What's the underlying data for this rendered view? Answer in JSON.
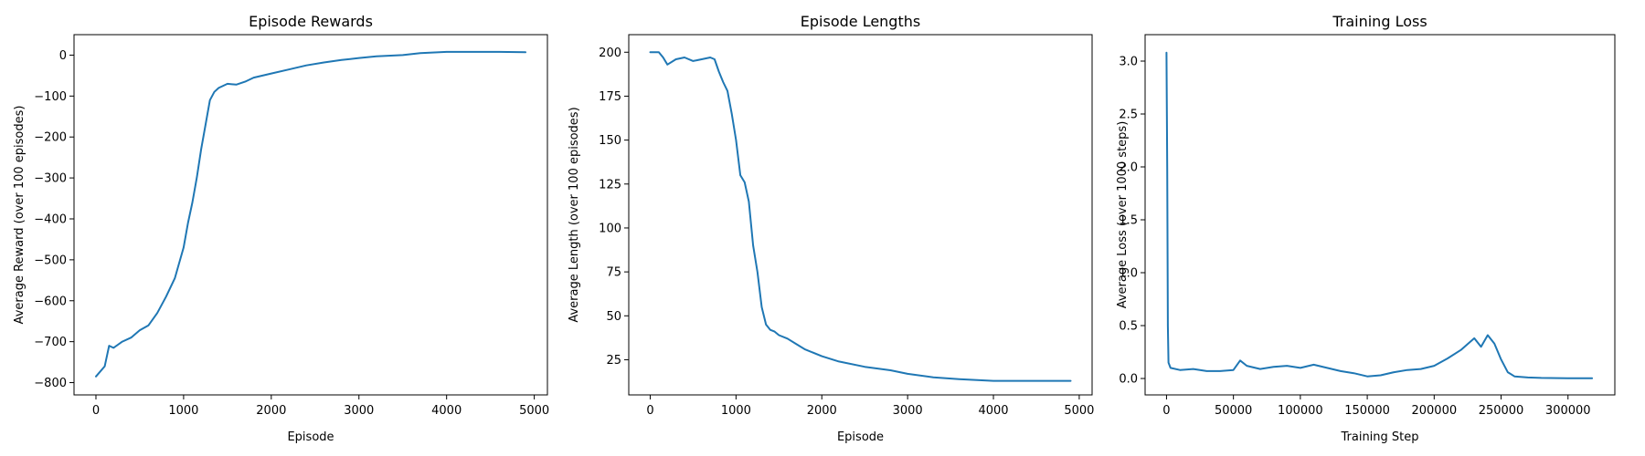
{
  "chart_data": [
    {
      "type": "line",
      "title": "Episode Rewards",
      "xlabel": "Episode",
      "ylabel": "Average Reward (over 100 episodes)",
      "xlim": [
        -250,
        5150
      ],
      "ylim": [
        -830,
        50
      ],
      "xticks": [
        0,
        1000,
        2000,
        3000,
        4000,
        5000
      ],
      "yticks": [
        -800,
        -700,
        -600,
        -500,
        -400,
        -300,
        -200,
        -100,
        0
      ],
      "grid": false,
      "color": "#1f77b4",
      "x": [
        0,
        100,
        150,
        200,
        300,
        400,
        500,
        600,
        700,
        800,
        900,
        1000,
        1050,
        1100,
        1150,
        1200,
        1250,
        1300,
        1350,
        1400,
        1450,
        1500,
        1600,
        1700,
        1800,
        2000,
        2200,
        2400,
        2600,
        2800,
        3000,
        3200,
        3500,
        3700,
        4000,
        4300,
        4600,
        4900
      ],
      "y": [
        -785,
        -760,
        -710,
        -715,
        -700,
        -690,
        -672,
        -660,
        -630,
        -590,
        -545,
        -470,
        -410,
        -360,
        -300,
        -230,
        -170,
        -110,
        -90,
        -80,
        -75,
        -70,
        -72,
        -65,
        -55,
        -45,
        -35,
        -25,
        -18,
        -12,
        -7,
        -3,
        0,
        5,
        8,
        8,
        8,
        7
      ]
    },
    {
      "type": "line",
      "title": "Episode Lengths",
      "xlabel": "Episode",
      "ylabel": "Average Length (over 100 episodes)",
      "xlim": [
        -250,
        5150
      ],
      "ylim": [
        5,
        210
      ],
      "xticks": [
        0,
        1000,
        2000,
        3000,
        4000,
        5000
      ],
      "yticks": [
        25,
        50,
        75,
        100,
        125,
        150,
        175,
        200
      ],
      "grid": false,
      "color": "#1f77b4",
      "x": [
        0,
        100,
        150,
        200,
        300,
        400,
        500,
        600,
        700,
        750,
        800,
        850,
        900,
        950,
        1000,
        1050,
        1100,
        1150,
        1200,
        1250,
        1300,
        1350,
        1400,
        1450,
        1500,
        1600,
        1700,
        1800,
        2000,
        2200,
        2500,
        2800,
        3000,
        3300,
        3600,
        4000,
        4300,
        4600,
        4900
      ],
      "y": [
        200,
        200,
        197,
        193,
        196,
        197,
        195,
        196,
        197,
        196,
        189,
        183,
        178,
        165,
        150,
        130,
        126,
        115,
        90,
        75,
        55,
        45,
        42,
        41,
        39,
        37,
        34,
        31,
        27,
        24,
        21,
        19,
        17,
        15,
        14,
        13,
        13,
        13,
        13
      ]
    },
    {
      "type": "line",
      "title": "Training Loss",
      "xlabel": "Training Step",
      "ylabel": "Average Loss (over 1000 steps)",
      "xlim": [
        -16000,
        335000
      ],
      "ylim": [
        -0.155,
        3.25
      ],
      "xticks": [
        0,
        50000,
        100000,
        150000,
        200000,
        250000,
        300000
      ],
      "yticks": [
        0.0,
        0.5,
        1.0,
        1.5,
        2.0,
        2.5,
        3.0
      ],
      "grid": false,
      "color": "#1f77b4",
      "x": [
        0,
        500,
        1000,
        1500,
        3000,
        10000,
        20000,
        30000,
        40000,
        50000,
        55000,
        60000,
        70000,
        80000,
        90000,
        100000,
        110000,
        120000,
        130000,
        140000,
        150000,
        160000,
        170000,
        180000,
        190000,
        200000,
        210000,
        220000,
        230000,
        235000,
        240000,
        245000,
        250000,
        255000,
        260000,
        270000,
        280000,
        300000,
        318000
      ],
      "y": [
        3.08,
        2.0,
        0.5,
        0.15,
        0.1,
        0.08,
        0.09,
        0.07,
        0.07,
        0.08,
        0.17,
        0.12,
        0.09,
        0.11,
        0.12,
        0.1,
        0.13,
        0.1,
        0.07,
        0.05,
        0.02,
        0.03,
        0.06,
        0.08,
        0.09,
        0.12,
        0.19,
        0.27,
        0.38,
        0.3,
        0.41,
        0.33,
        0.18,
        0.06,
        0.02,
        0.01,
        0.005,
        0.003,
        0.003
      ]
    }
  ]
}
